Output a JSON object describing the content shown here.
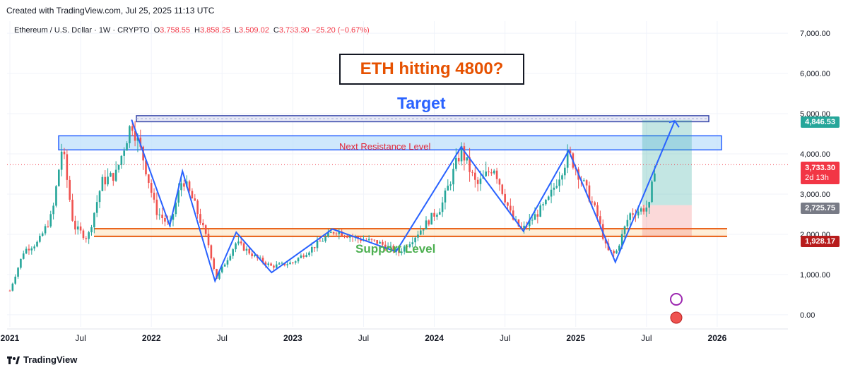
{
  "header": {
    "credit": "Created with TradingView.com, Jul 25, 2025 11:13 UTC"
  },
  "legend": {
    "symbol": "Ethereum / U.S. Dollar · 1W · CRYPTO",
    "open_label": "O",
    "open": "3,758.55",
    "high_label": "H",
    "high": "3,858.25",
    "low_label": "L",
    "low": "3,509.02",
    "close_label": "C",
    "close": "3,733.30",
    "change": "−25.20 (−0.67%)"
  },
  "annotations": {
    "title": "ETH hitting 4800?",
    "target": "Target",
    "resistance": "Next Resistance Level",
    "support": "Support Level"
  },
  "price_tags": {
    "target": "4,846.53",
    "current": "3,733.30",
    "countdown": "2d 13h",
    "entry": "2,725.75",
    "stop": "1,928.17"
  },
  "footer": {
    "brand": "TradingView"
  },
  "colors": {
    "up": "#26a69a",
    "down": "#ef5350",
    "zigzag": "#2962ff",
    "resistance_fill": "#bbdefb",
    "support_line": "#e65100",
    "target_zone": "#26a69a",
    "stop_zone": "#ef5350"
  },
  "chart_data": {
    "type": "candlestick",
    "symbol": "ETHUSD",
    "timeframe": "1W",
    "ylim": [
      -300,
      7300
    ],
    "y_ticks": [
      "7,000.00",
      "6,000.00",
      "5,000.00",
      "4,000.00",
      "3,000.00",
      "2,000.00",
      "1,000.00",
      "0.00"
    ],
    "y_tick_values": [
      7000,
      6000,
      5000,
      4000,
      3000,
      2000,
      1000,
      0
    ],
    "x_ticks": [
      "2021",
      "Jul",
      "2022",
      "Jul",
      "2023",
      "Jul",
      "2024",
      "Jul",
      "2025",
      "Jul",
      "2026"
    ],
    "x_tick_values": [
      2021.0,
      2021.5,
      2022.0,
      2022.5,
      2023.0,
      2023.5,
      2024.0,
      2024.5,
      2025.0,
      2025.5,
      2026.0
    ],
    "xlim": [
      2020.98,
      2026.5
    ],
    "price_path": [
      [
        2021.0,
        600
      ],
      [
        2021.1,
        1600
      ],
      [
        2021.2,
        1800
      ],
      [
        2021.3,
        2500
      ],
      [
        2021.37,
        4200
      ],
      [
        2021.45,
        2200
      ],
      [
        2021.55,
        1900
      ],
      [
        2021.65,
        3300
      ],
      [
        2021.75,
        3500
      ],
      [
        2021.86,
        4800
      ],
      [
        2021.95,
        3800
      ],
      [
        2022.03,
        2600
      ],
      [
        2022.13,
        2200
      ],
      [
        2022.22,
        3400
      ],
      [
        2022.3,
        2800
      ],
      [
        2022.4,
        1800
      ],
      [
        2022.46,
        900
      ],
      [
        2022.6,
        1800
      ],
      [
        2022.75,
        1400
      ],
      [
        2022.85,
        1200
      ],
      [
        2023.0,
        1300
      ],
      [
        2023.15,
        1700
      ],
      [
        2023.3,
        2100
      ],
      [
        2023.45,
        1900
      ],
      [
        2023.6,
        1800
      ],
      [
        2023.75,
        1550
      ],
      [
        2023.85,
        1900
      ],
      [
        2023.95,
        2300
      ],
      [
        2024.05,
        2700
      ],
      [
        2024.19,
        4100
      ],
      [
        2024.3,
        3200
      ],
      [
        2024.42,
        3700
      ],
      [
        2024.55,
        2400
      ],
      [
        2024.62,
        2100
      ],
      [
        2024.8,
        2800
      ],
      [
        2024.95,
        4000
      ],
      [
        2025.05,
        3300
      ],
      [
        2025.15,
        2500
      ],
      [
        2025.22,
        1600
      ],
      [
        2025.28,
        1500
      ],
      [
        2025.38,
        2500
      ],
      [
        2025.45,
        2600
      ],
      [
        2025.52,
        2700
      ],
      [
        2025.56,
        3733
      ]
    ],
    "zigzag": [
      [
        2021.86,
        4850
      ],
      [
        2022.13,
        2220
      ],
      [
        2022.22,
        3570
      ],
      [
        2022.45,
        840
      ],
      [
        2022.6,
        2050
      ],
      [
        2022.85,
        1050
      ],
      [
        2023.28,
        2130
      ],
      [
        2023.73,
        1570
      ],
      [
        2024.19,
        4170
      ],
      [
        2024.63,
        2080
      ],
      [
        2024.95,
        4080
      ],
      [
        2025.28,
        1310
      ],
      [
        2025.7,
        4820
      ]
    ],
    "resistance_band": [
      4100,
      4450
    ],
    "target_band": [
      4800,
      4950
    ],
    "support_band": [
      1950,
      2140
    ],
    "position": {
      "entry": 2725.75,
      "target": 4846.53,
      "stop": 1928.17,
      "x_start": 2025.47,
      "x_end": 2025.82
    },
    "last_close": 3733.3
  }
}
